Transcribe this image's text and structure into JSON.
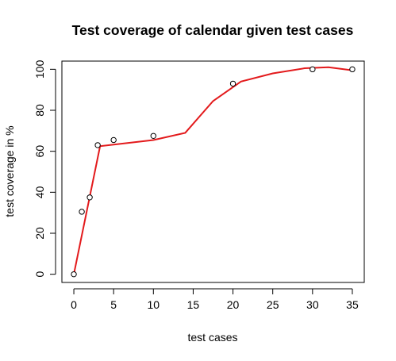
{
  "chart_data": {
    "type": "scatter",
    "title": "Test coverage of calendar given test cases",
    "xlabel": "test cases",
    "ylabel": "test coverage in %",
    "xlim": [
      -1.5,
      36.5
    ],
    "ylim": [
      -4,
      104
    ],
    "xticks": [
      "0",
      "5",
      "10",
      "15",
      "20",
      "25",
      "30",
      "35"
    ],
    "yticks": [
      "0",
      "20",
      "40",
      "60",
      "80",
      "100"
    ],
    "grid": false,
    "series": [
      {
        "kind": "points",
        "marker": "open-circle",
        "color": "#000000",
        "x": [
          0,
          1,
          2,
          3,
          5,
          10,
          20,
          30,
          35
        ],
        "y": [
          0,
          30.5,
          37.5,
          63,
          65.5,
          67.5,
          93,
          100,
          100
        ]
      },
      {
        "kind": "line",
        "color": "#e31a1c",
        "x": [
          0,
          3.3,
          10,
          14,
          17.5,
          21,
          25,
          29,
          32,
          35
        ],
        "y": [
          0,
          62.5,
          65.5,
          69,
          84.5,
          94,
          98,
          100.5,
          101,
          99.5
        ]
      }
    ]
  }
}
